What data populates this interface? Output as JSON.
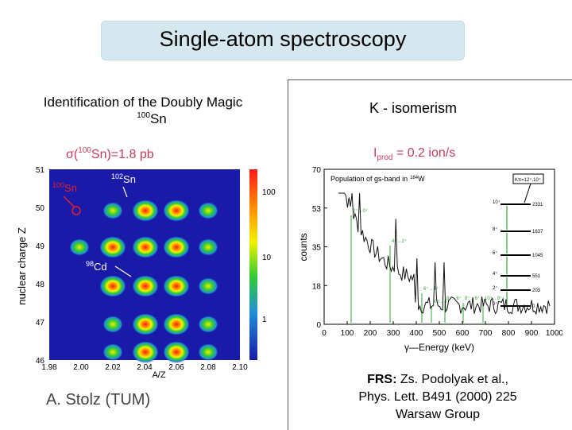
{
  "title": "Single-atom spectroscopy",
  "left": {
    "heading": "Identification of the Doubly Magic",
    "nuclide_mass": "100",
    "nuclide_symbol": "Sn",
    "cross_section": {
      "prefix": "σ(",
      "mass": "100",
      "suffix": "Sn)=1.8 pb"
    },
    "credit": "A. Stolz (TUM)"
  },
  "id_plot": {
    "x_ticks": [
      "1.98",
      "2.00",
      "2.02",
      "2.04",
      "2.06",
      "2.08",
      "2.10"
    ],
    "y_ticks": [
      "51",
      "50",
      "49",
      "48",
      "47",
      "46"
    ],
    "x_label": "A/Z",
    "y_label": "nuclear charge Z",
    "colorbar_ticks": [
      "100",
      "10",
      "1"
    ],
    "annotations": [
      {
        "mass": "100",
        "symbol": "Sn",
        "color": "#e0202a"
      },
      {
        "mass": "102",
        "symbol": "Sn",
        "color": "#ffffff"
      },
      {
        "mass": "98",
        "symbol": "Cd",
        "color": "#ffffff"
      }
    ]
  },
  "right": {
    "heading": "K - isomerism",
    "production": {
      "symbol": "I",
      "subscript": "prod",
      "value": " = 0.2 ion/s"
    },
    "reference": {
      "label": "FRS:",
      "authors": " Zs. Podolyak et al.,",
      "journal": "Phys. Lett. B491 (2000) 225",
      "group": "Warsaw Group"
    }
  },
  "spectrum": {
    "x_label": "γ—Energy  (keV)",
    "y_label": "counts",
    "x_ticks": [
      "0",
      "100",
      "200",
      "300",
      "400",
      "500",
      "600",
      "700",
      "800",
      "900",
      "1000"
    ],
    "y_ticks": [
      "70",
      "53",
      "35",
      "18",
      "0"
    ],
    "inset_title": "Population of gs-band in",
    "inset_nucleus": "W",
    "inset_mass": "184",
    "k_label": "Kπ=12⁺,10⁺",
    "levels": [
      "10⁺",
      "8⁺",
      "6⁺",
      "4⁺",
      "2⁺",
      "0⁺"
    ],
    "level_energies": [
      "2331",
      "1637",
      "1045",
      "551",
      "203",
      "0"
    ],
    "peak_labels": [
      "2⁺→0⁺",
      "4⁺→2⁺",
      "6⁺→4⁺",
      "8⁺→6⁺",
      "8⁺→6⁺",
      "10⁺→8⁺",
      "Kπ→8⁺"
    ]
  },
  "colors": {
    "title_bg": "#d6e8ef",
    "accent": "#c53c5a",
    "green": "#2fa531",
    "plot_bg": "#1a1aa8"
  }
}
